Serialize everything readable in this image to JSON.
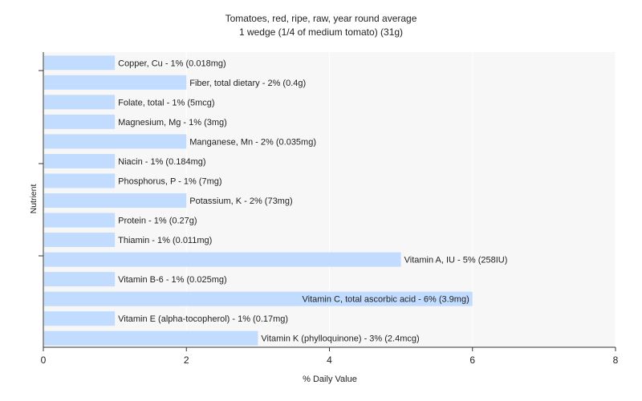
{
  "chart_data": {
    "type": "bar",
    "orientation": "horizontal",
    "title": "Tomatoes, red, ripe, raw, year round average",
    "subtitle": "1 wedge (1/4 of medium tomato) (31g)",
    "xlabel": "% Daily Value",
    "ylabel": "Nutrient",
    "xlim": [
      0,
      8
    ],
    "xticks": [
      "0",
      "2",
      "4",
      "6",
      "8"
    ],
    "grid": true,
    "bar_color": "#c2dcff",
    "categories": [
      "Copper, Cu",
      "Fiber, total dietary",
      "Folate, total",
      "Magnesium, Mg",
      "Manganese, Mn",
      "Niacin",
      "Phosphorus, P",
      "Potassium, K",
      "Protein",
      "Thiamin",
      "Vitamin A, IU",
      "Vitamin B-6",
      "Vitamin C, total ascorbic acid",
      "Vitamin E (alpha-tocopherol)",
      "Vitamin K (phylloquinone)"
    ],
    "values": [
      1,
      2,
      1,
      1,
      2,
      1,
      1,
      2,
      1,
      1,
      5,
      1,
      6,
      1,
      3
    ],
    "labels": [
      "Copper, Cu - 1% (0.018mg)",
      "Fiber, total dietary - 2% (0.4g)",
      "Folate, total - 1% (5mcg)",
      "Magnesium, Mg - 1% (3mg)",
      "Manganese, Mn - 2% (0.035mg)",
      "Niacin - 1% (0.184mg)",
      "Phosphorus, P - 1% (7mg)",
      "Potassium, K - 2% (73mg)",
      "Protein - 1% (0.27g)",
      "Thiamin - 1% (0.011mg)",
      "Vitamin A, IU - 5% (258IU)",
      "Vitamin B-6 - 1% (0.025mg)",
      "Vitamin C, total ascorbic acid - 6% (3.9mg)",
      "Vitamin E (alpha-tocopherol) - 1% (0.17mg)",
      "Vitamin K (phylloquinone) - 3% (2.4mcg)"
    ]
  }
}
